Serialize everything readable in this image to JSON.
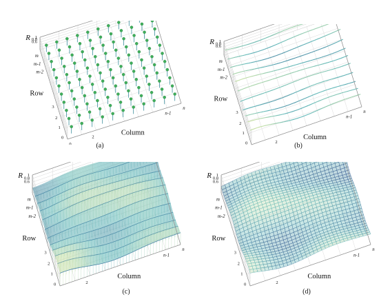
{
  "panels": [
    {
      "id": "a",
      "caption": "(a)",
      "mode": "stems",
      "z_label": "R",
      "z_ticks": [
        "1",
        "0.8",
        "0.6"
      ],
      "row_label": "Row",
      "column_label": "Column",
      "row_ticks": [
        "m",
        "m-1",
        "m-2",
        "3",
        "2",
        "1",
        "0"
      ],
      "column_ticks": [
        "0",
        "2",
        "n-1",
        "n"
      ]
    },
    {
      "id": "b",
      "caption": "(b)",
      "mode": "curves",
      "z_label": "R",
      "z_ticks": [
        "1",
        "0.8",
        "0.6"
      ],
      "row_label": "Row",
      "column_label": "Column",
      "row_ticks": [
        "m",
        "m-1",
        "m-2",
        "3",
        "2",
        "1",
        "0"
      ],
      "column_ticks": [
        "0",
        "2",
        "n-1",
        "n"
      ]
    },
    {
      "id": "c",
      "caption": "(c)",
      "mode": "ribbons",
      "z_label": "R",
      "z_ticks": [
        "1",
        "0.8",
        "0.6"
      ],
      "row_label": "Row",
      "column_label": "Column",
      "row_ticks": [
        "m",
        "m-1",
        "m-2",
        "3",
        "2",
        "1",
        "0"
      ],
      "column_ticks": [
        "0",
        "2",
        "n-1",
        "n"
      ]
    },
    {
      "id": "d",
      "caption": "(d)",
      "mode": "mesh",
      "z_label": "R",
      "z_ticks": [
        "1",
        "0.8",
        "0.6"
      ],
      "row_label": "Row",
      "column_label": "Column",
      "row_ticks": [
        "m",
        "m-1",
        "m-2",
        "3",
        "2",
        "1",
        "0"
      ],
      "column_ticks": [
        "0",
        "2",
        "n-1",
        "n"
      ]
    }
  ],
  "colors": {
    "axis": "#8c8c8c",
    "grid": "#d6d6d6",
    "stem": "#3a8f9c",
    "marker": "#3fae5a",
    "low": "#2f4b8a",
    "mid": "#5fb7b7",
    "high": "#f3f19a"
  }
}
